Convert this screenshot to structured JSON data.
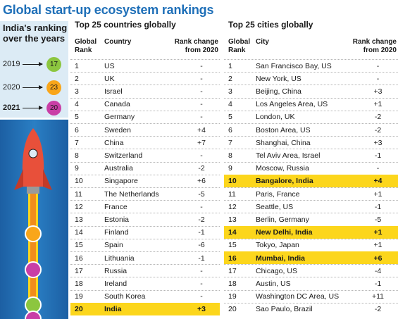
{
  "title": "Global start-up ecosystem rankings",
  "india_panel": {
    "heading": "India's ranking over the years",
    "years": [
      {
        "year": "2019",
        "rank": "17",
        "color": "#8cc63f",
        "bold": false
      },
      {
        "year": "2020",
        "rank": "23",
        "color": "#f9a61a",
        "bold": false
      },
      {
        "year": "2021",
        "rank": "20",
        "color": "#c93ea6",
        "bold": true
      }
    ]
  },
  "chart_data": [
    {
      "type": "table",
      "title": "Top 25 countries globally",
      "columns": [
        "Global Rank",
        "Country",
        "Rank change from 2020"
      ],
      "highlight_color": "#fcd61c",
      "rows": [
        {
          "rank": "1",
          "name": "US",
          "change": "-",
          "highlight": false
        },
        {
          "rank": "2",
          "name": "UK",
          "change": "-",
          "highlight": false
        },
        {
          "rank": "3",
          "name": "Israel",
          "change": "-",
          "highlight": false
        },
        {
          "rank": "4",
          "name": "Canada",
          "change": "-",
          "highlight": false
        },
        {
          "rank": "5",
          "name": "Germany",
          "change": "-",
          "highlight": false
        },
        {
          "rank": "6",
          "name": "Sweden",
          "change": "+4",
          "highlight": false
        },
        {
          "rank": "7",
          "name": "China",
          "change": "+7",
          "highlight": false
        },
        {
          "rank": "8",
          "name": "Switzerland",
          "change": "-",
          "highlight": false
        },
        {
          "rank": "9",
          "name": "Australia",
          "change": "-2",
          "highlight": false
        },
        {
          "rank": "10",
          "name": "Singapore",
          "change": "+6",
          "highlight": false
        },
        {
          "rank": "11",
          "name": "The Netherlands",
          "change": "-5",
          "highlight": false
        },
        {
          "rank": "12",
          "name": "France",
          "change": "-",
          "highlight": false
        },
        {
          "rank": "13",
          "name": "Estonia",
          "change": "-2",
          "highlight": false
        },
        {
          "rank": "14",
          "name": "Finland",
          "change": "-1",
          "highlight": false
        },
        {
          "rank": "15",
          "name": "Spain",
          "change": "-6",
          "highlight": false
        },
        {
          "rank": "16",
          "name": "Lithuania",
          "change": "-1",
          "highlight": false
        },
        {
          "rank": "17",
          "name": "Russia",
          "change": "-",
          "highlight": false
        },
        {
          "rank": "18",
          "name": "Ireland",
          "change": "-",
          "highlight": false
        },
        {
          "rank": "19",
          "name": "South Korea",
          "change": "-",
          "highlight": false
        },
        {
          "rank": "20",
          "name": "India",
          "change": "+3",
          "highlight": true
        }
      ]
    },
    {
      "type": "table",
      "title": "Top 25 cities globally",
      "columns": [
        "Global Rank",
        "City",
        "Rank change from 2020"
      ],
      "highlight_color": "#fcd61c",
      "rows": [
        {
          "rank": "1",
          "name": "San Francisco Bay, US",
          "change": "-",
          "highlight": false
        },
        {
          "rank": "2",
          "name": "New York, US",
          "change": "-",
          "highlight": false
        },
        {
          "rank": "3",
          "name": "Beijing, China",
          "change": "+3",
          "highlight": false
        },
        {
          "rank": "4",
          "name": "Los Angeles Area, US",
          "change": "+1",
          "highlight": false
        },
        {
          "rank": "5",
          "name": "London, UK",
          "change": "-2",
          "highlight": false
        },
        {
          "rank": "6",
          "name": "Boston Area, US",
          "change": "-2",
          "highlight": false
        },
        {
          "rank": "7",
          "name": "Shanghai, China",
          "change": "+3",
          "highlight": false
        },
        {
          "rank": "8",
          "name": "Tel Aviv Area, Israel",
          "change": "-1",
          "highlight": false
        },
        {
          "rank": "9",
          "name": "Moscow, Russia",
          "change": "-",
          "highlight": false
        },
        {
          "rank": "10",
          "name": "Bangalore, India",
          "change": "+4",
          "highlight": true
        },
        {
          "rank": "11",
          "name": "Paris, France",
          "change": "+1",
          "highlight": false
        },
        {
          "rank": "12",
          "name": "Seattle, US",
          "change": "-1",
          "highlight": false
        },
        {
          "rank": "13",
          "name": "Berlin, Germany",
          "change": "-5",
          "highlight": false
        },
        {
          "rank": "14",
          "name": "New Delhi, India",
          "change": "+1",
          "highlight": true
        },
        {
          "rank": "15",
          "name": "Tokyo, Japan",
          "change": "+1",
          "highlight": false
        },
        {
          "rank": "16",
          "name": "Mumbai, India",
          "change": "+6",
          "highlight": true
        },
        {
          "rank": "17",
          "name": "Chicago, US",
          "change": "-4",
          "highlight": false
        },
        {
          "rank": "18",
          "name": "Austin, US",
          "change": "-1",
          "highlight": false
        },
        {
          "rank": "19",
          "name": "Washington DC Area, US",
          "change": "+11",
          "highlight": false
        },
        {
          "rank": "20",
          "name": "Sao Paulo, Brazil",
          "change": "-2",
          "highlight": false
        }
      ]
    }
  ],
  "rocket": {
    "body_color": "#e8503a",
    "window_color": "#dcebf5",
    "flame_color": "#fcd61c",
    "dot_colors": [
      "#f9a61a",
      "#c93ea6",
      "#8cc63f",
      "#c93ea6"
    ]
  }
}
